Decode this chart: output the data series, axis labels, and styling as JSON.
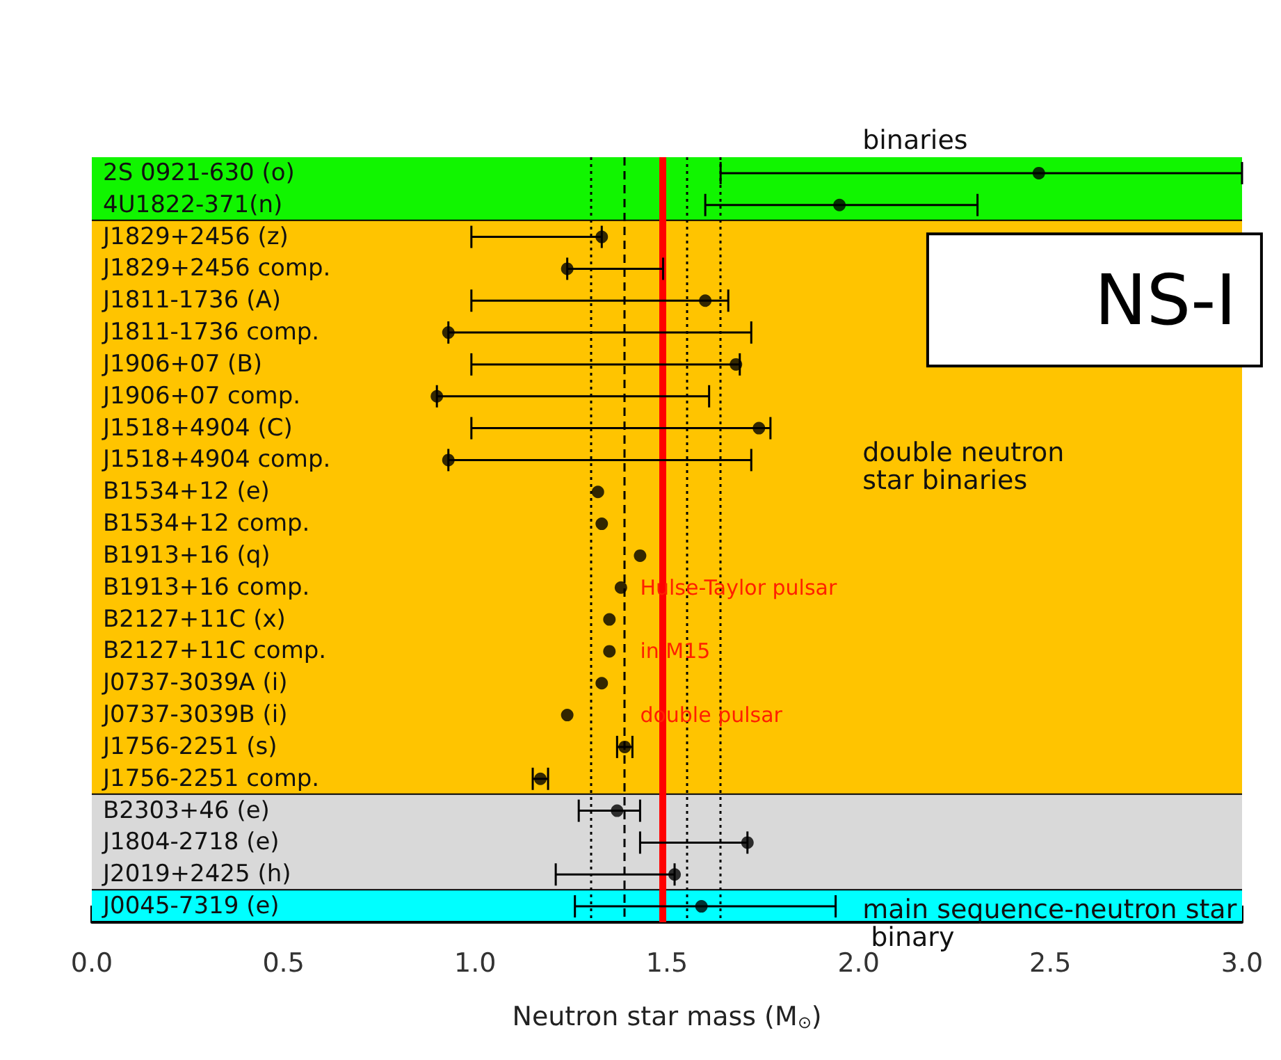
{
  "chart_data": {
    "type": "scatter",
    "orientation": "horizontal",
    "xlabel": "Neutron star mass (M$_{⊙}$)",
    "categories": [
      "2S 0921-630 (o)",
      "4U1822-371(n)",
      "J1829+2456 (z)",
      "J1829+2456 comp.",
      "J1811-1736 (A)",
      "J1811-1736 comp.",
      "J1906+07 (B)",
      "J1906+07 comp.",
      "J1518+4904 (C)",
      "J1518+4904 comp.",
      "B1534+12 (e)",
      "B1534+12 comp.",
      "B1913+16 (q)",
      "B1913+16 comp.",
      "B2127+11C (x)",
      "B2127+11C comp.",
      "J0737-3039A (i)",
      "J0737-3039B (i)",
      "J1756-2251 (s)",
      "J1756-2251 comp.",
      "B2303+46 (e)",
      "J1804-2718 (e)",
      "J2019+2425 (h)",
      "J0045-7319 (e)"
    ],
    "series": [
      {
        "color": "#000000",
        "values": [
          2.47,
          1.95,
          1.33,
          1.24,
          1.6,
          0.93,
          1.68,
          0.9,
          1.74,
          0.93,
          1.32,
          1.33,
          1.43,
          1.38,
          1.35,
          1.35,
          1.33,
          1.24,
          1.39,
          1.17,
          1.37,
          1.71,
          1.52,
          1.59
        ],
        "errors": [
          [
            1.64,
            3.0
          ],
          [
            1.6,
            2.31
          ],
          [
            0.99,
            1.33
          ],
          [
            1.24,
            1.49
          ],
          [
            0.99,
            1.66
          ],
          [
            0.93,
            1.72
          ],
          [
            0.99,
            1.69
          ],
          [
            0.9,
            1.61
          ],
          [
            0.99,
            1.77
          ],
          [
            0.93,
            1.72
          ],
          null,
          null,
          null,
          null,
          null,
          null,
          null,
          null,
          [
            1.37,
            1.41
          ],
          [
            1.15,
            1.19
          ],
          [
            1.27,
            1.43
          ],
          [
            1.43,
            1.71
          ],
          [
            1.21,
            1.52
          ],
          [
            1.26,
            1.94
          ]
        ]
      }
    ],
    "marker": "circle",
    "grid": false,
    "xlim": [
      0,
      3
    ],
    "xticks": [
      {
        "value": 0,
        "label": "0.0"
      },
      {
        "value": 0.1,
        "label": null
      },
      {
        "value": 0.2,
        "label": null
      },
      {
        "value": 0.3,
        "label": null
      },
      {
        "value": 0.4,
        "label": null
      },
      {
        "value": 0.5,
        "label": "0.5"
      },
      {
        "value": 0.6,
        "label": null
      },
      {
        "value": 0.7,
        "label": null
      },
      {
        "value": 0.8,
        "label": null
      },
      {
        "value": 0.9,
        "label": null
      },
      {
        "value": 1,
        "label": "1.0"
      },
      {
        "value": 1.1,
        "label": null
      },
      {
        "value": 1.2,
        "label": null
      },
      {
        "value": 1.3,
        "label": null
      },
      {
        "value": 1.4,
        "label": null
      },
      {
        "value": 1.5,
        "label": "1.5"
      },
      {
        "value": 1.6,
        "label": null
      },
      {
        "value": 1.7,
        "label": null
      },
      {
        "value": 1.8,
        "label": null
      },
      {
        "value": 1.9,
        "label": null
      },
      {
        "value": 2,
        "label": "2.0"
      },
      {
        "value": 2.1,
        "label": null
      },
      {
        "value": 2.2,
        "label": null
      },
      {
        "value": 2.3,
        "label": null
      },
      {
        "value": 2.4,
        "label": null
      },
      {
        "value": 2.5,
        "label": "2.5"
      },
      {
        "value": 2.6,
        "label": null
      },
      {
        "value": 2.7,
        "label": null
      },
      {
        "value": 2.8,
        "label": null
      },
      {
        "value": 2.9,
        "label": null
      },
      {
        "value": 3,
        "label": "3.0"
      }
    ],
    "bands": [
      {
        "axis": "y",
        "from": "2S 0921-630 (o)",
        "to": "4U1822-371(n)",
        "label": "binaries",
        "color": "#11f500"
      },
      {
        "axis": "y",
        "from": "J1829+2456 (z)",
        "to": "J1756-2251 comp.",
        "label": "double neutron star binaries",
        "color": "#ffc400"
      },
      {
        "axis": "y",
        "from": "B2303+46 (e)",
        "to": "J2019+2425 (h)",
        "color": "#d9d9d9"
      },
      {
        "axis": "y",
        "from": "J0045-7319 (e)",
        "to": "J0045-7319 (e)",
        "label": "main sequence-neutron star binary",
        "color": "#00ffff"
      }
    ],
    "ref_lines": [
      {
        "axis": "x",
        "value": 1.3,
        "line_style": "dotted",
        "color": "#000000"
      },
      {
        "axis": "x",
        "value": 1.39,
        "line_style": "dashed",
        "color": "#000000"
      },
      {
        "axis": "x",
        "value": 1.64,
        "line_style": "dotted",
        "color": "#000000"
      },
      {
        "axis": "x",
        "value": 1.55,
        "line_style": "dotted",
        "color": "#000000"
      },
      {
        "axis": "x",
        "value": 1.49,
        "line_style": "solid",
        "color": "#ff0000"
      }
    ],
    "annotations": [
      "NS-I",
      "Hulse-Taylor pulsar",
      "in M15",
      "double pulsar"
    ]
  }
}
